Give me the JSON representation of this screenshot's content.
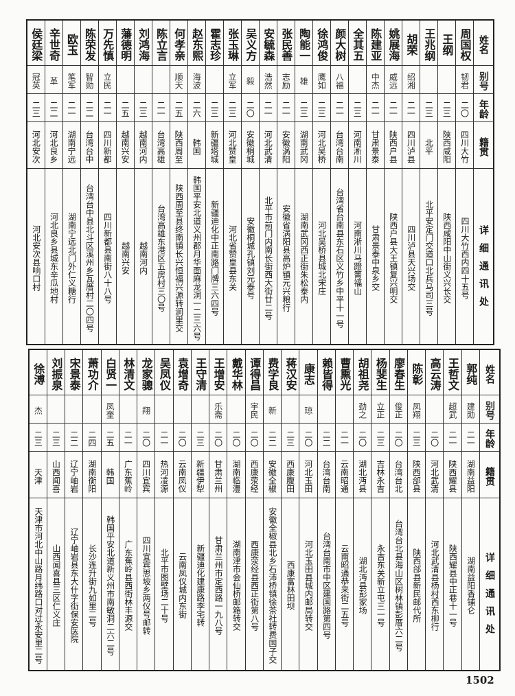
{
  "headers": {
    "name": "姓名",
    "alias": "别号",
    "age": "年龄",
    "origin": "籍贯",
    "address": "详细通讯处"
  },
  "top_table": [
    {
      "name": "周国权",
      "alias": "韧君",
      "age": "二〇",
      "origin": "四川大竹",
      "address": "四川大竹西内四十五号"
    },
    {
      "name": "王纲",
      "alias": "",
      "age": "二三",
      "origin": "陕西咸阳",
      "address": "陕西咸阳中山街义兴长交"
    },
    {
      "name": "王兆纲",
      "alias": "",
      "age": "二三",
      "origin": "北平",
      "address": "北平安定门交道口北兵马司三号"
    },
    {
      "name": "胡荣",
      "alias": "绍湘",
      "age": "二一",
      "origin": "四川泸县",
      "address": "四川泸县天兴场交"
    },
    {
      "name": "姚展海",
      "alias": "威远",
      "age": "二一",
      "origin": "陕西户县",
      "address": "陕西户县大王镇复兴明交"
    },
    {
      "name": "陈建亚",
      "alias": "中杰",
      "age": "二一",
      "origin": "甘肃景泰",
      "address": "甘肃景泰中泉乡交"
    },
    {
      "name": "全其五",
      "alias": "",
      "age": "二三",
      "origin": "河南淅川",
      "address": "河南淅川马蹬箐福山"
    },
    {
      "name": "颜大树",
      "alias": "八福",
      "age": "二一",
      "origin": "台湾台南",
      "address": "台湾省台南县东石区义竹乡中平十一号"
    },
    {
      "name": "徐鸿俊",
      "alias": "鹰如",
      "age": "二三",
      "origin": "河北吴桥",
      "address": "河北吴桥县城北宋庄"
    },
    {
      "name": "陶能一",
      "alias": "雄",
      "age": "二三",
      "origin": "湖南武冈",
      "address": "湖南武冈西正街朱松泰内"
    },
    {
      "name": "张民善",
      "alias": "志励",
      "age": "二一",
      "origin": "安徽涡阳",
      "address": "安徽省涡阳县高炉镇元兴粮行"
    },
    {
      "name": "安毓森",
      "alias": "浩然",
      "age": "二一",
      "origin": "河北武清",
      "address": "北平市前门内南长街西大街廿二号"
    },
    {
      "name": "吴义方",
      "alias": "毅",
      "age": "二〇",
      "origin": "安徽桐城",
      "address": "安徽桐城孔镇刘元泰号"
    },
    {
      "name": "张玉琳",
      "alias": "立军",
      "age": "二三",
      "origin": "河北赞皇",
      "address": "河北省赞皇县东关"
    },
    {
      "name": "霍志珍",
      "alias": "",
      "age": "二三",
      "origin": "新疆塔城",
      "address": "新疆迪化中正南路门牌三六四号"
    },
    {
      "name": "赵东熙",
      "alias": "海波",
      "age": "二六",
      "origin": "韩国",
      "address": "韩国平安北道义州郡月华面麻龙洞一二三六号"
    },
    {
      "name": "何孝亲",
      "alias": "顺天",
      "age": "二五",
      "origin": "陕西周至",
      "address": "陕西周至县终南镇长兴恒福兴源转涧里交"
    },
    {
      "name": "陈立言",
      "alias": "",
      "age": "二一",
      "origin": "台湾高雄",
      "address": "台湾高雄东港区五房村三〇号"
    },
    {
      "name": "刘鸿海",
      "alias": "",
      "age": "二三",
      "origin": "越南河内",
      "address": "越南河内"
    },
    {
      "name": "藩德明",
      "alias": "",
      "age": "二五",
      "origin": "越南兴安",
      "address": "越南兴安"
    },
    {
      "name": "万先慎",
      "alias": "立民",
      "age": "二一",
      "origin": "四川新都",
      "address": "四川新都县南街八十八号"
    },
    {
      "name": "陈荣发",
      "alias": "智勋",
      "age": "二二",
      "origin": "台湾台中",
      "address": "台湾台中县北斗区溪州乡瓦厝村二〇四号"
    },
    {
      "name": "欧玉",
      "alias": "笔军",
      "age": "二一",
      "origin": "湖南宁远",
      "address": "湖南宁远北门外仁义糖行"
    },
    {
      "name": "辛世奇",
      "alias": "革",
      "age": "二二",
      "origin": "河北良乡",
      "address": "河北良乡县城东辛瓜地村"
    },
    {
      "name": "侯廷梁",
      "alias": "冠英",
      "age": "二三",
      "origin": "河北安次",
      "address": "河北安次县响口村"
    }
  ],
  "bottom_table": [
    {
      "name": "郭纯",
      "alias": "建勋",
      "age": "二一",
      "origin": "湖南益阳",
      "address": "湖南益阳香铺仑"
    },
    {
      "name": "王哲文",
      "alias": "超武",
      "age": "二一",
      "origin": "陕西耀县",
      "address": "陕西耀县中正巷十一号"
    },
    {
      "name": "高云涛",
      "alias": "",
      "age": "二〇",
      "origin": "河北武清",
      "address": "河北武清县杨村西东柳行"
    },
    {
      "name": "陈彰",
      "alias": "凤翔",
      "age": "二三",
      "origin": "陕西郃县",
      "address": "陕西郃县新民邮代所"
    },
    {
      "name": "廖春生",
      "alias": "俊正",
      "age": "二〇",
      "origin": "台湾台北",
      "address": "台湾台北县海山区树林镇彭厝六二号"
    },
    {
      "name": "杨斐生",
      "alias": "立正",
      "age": "二三",
      "origin": "吉林永吉",
      "address": "永吉东关新立屯三一号"
    },
    {
      "name": "胡祖尧",
      "alias": "劲之",
      "age": "二〇",
      "origin": "湖北沔县",
      "address": "湖北沔县彭家场"
    },
    {
      "name": "曹熏光",
      "alias": "",
      "age": "二一",
      "origin": "云南昭通",
      "address": "云南昭通恭来街二五号"
    },
    {
      "name": "赖皆得",
      "alias": "",
      "age": "二二",
      "origin": "台湾台南",
      "address": "台湾台南市中区建国路第四号"
    },
    {
      "name": "康志",
      "alias": "琼",
      "age": "二〇",
      "origin": "河北玉田",
      "address": "河北玉田县城内邮局转交"
    },
    {
      "name": "蒋汉安",
      "alias": "",
      "age": "二三",
      "origin": "西康腹田",
      "address": "西康富林田坝"
    },
    {
      "name": "费学良",
      "alias": "新",
      "age": "二二",
      "origin": "安徽全椒",
      "address": "安徽全椒县北乡石沛桥镇徐茶社转费国子交"
    },
    {
      "name": "谭得昌",
      "alias": "宇民",
      "age": "二〇",
      "origin": "西康荥经",
      "address": "西康荥经县西正街第八号"
    },
    {
      "name": "戴华林",
      "alias": "",
      "age": "二〇",
      "origin": "湖南临澧",
      "address": "湖南津市会仙桥邮箱转交"
    },
    {
      "name": "王增安",
      "alias": "乐斋",
      "age": "二〇",
      "origin": "甘肃兰州",
      "address": "甘肃兰州市定西路一九八号"
    },
    {
      "name": "王守清",
      "alias": "",
      "age": "二三",
      "origin": "新疆伊犁",
      "address": "新疆迪化建康路李宅转"
    },
    {
      "name": "袁增奇",
      "alias": "",
      "age": "二〇",
      "origin": "云南凤仪",
      "address": "云南凤仪城内东街"
    },
    {
      "name": "吴凤仪",
      "alias": "",
      "age": "二一",
      "origin": "热河凌源",
      "address": "北平市图壁场二十号"
    },
    {
      "name": "龙家骢",
      "alias": "翔",
      "age": "二〇",
      "origin": "四川宜宾",
      "address": "四川宜宾思坡乡两仪号邮转"
    },
    {
      "name": "林清文",
      "alias": "",
      "age": "二一",
      "origin": "广东蕉岭",
      "address": "广东蕉岭县西街林丰源交"
    },
    {
      "name": "白贤一",
      "alias": "凤奎",
      "age": "二五",
      "origin": "韩国",
      "address": "韩国平安北道新义州市南敏洞二六二号"
    },
    {
      "name": "萧功介",
      "alias": "",
      "age": "二四",
      "origin": "湖南衡阳",
      "address": "长沙连升街九如里二号"
    },
    {
      "name": "宋景泰",
      "alias": "",
      "age": "二二",
      "origin": "辽宁岫岩",
      "address": "辽宁岫岩县东大什字街保安医院"
    },
    {
      "name": "刘振泉",
      "alias": "",
      "age": "二三",
      "origin": "山西闻喜",
      "address": "山西闻喜县三区仁义庄"
    },
    {
      "name": "徐溥",
      "alias": "杰",
      "age": "二三",
      "origin": "天津",
      "address": "天津市河北中山路月纬路口对过永安里二号"
    }
  ],
  "page_number": "1502"
}
